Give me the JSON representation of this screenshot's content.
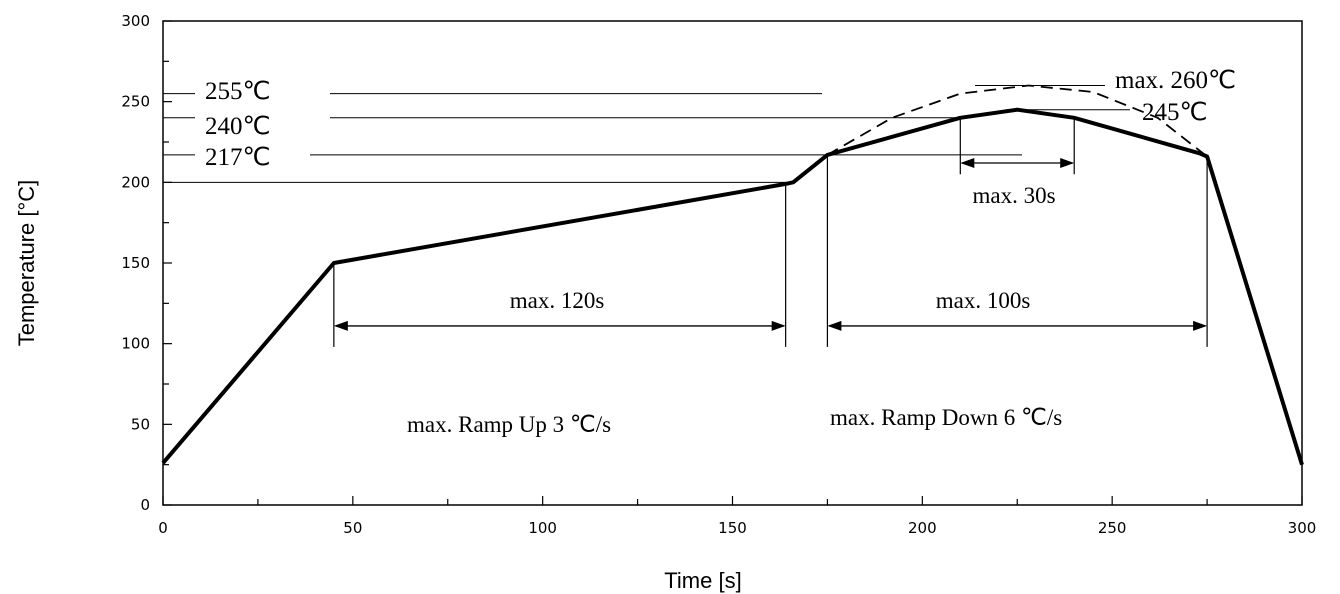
{
  "chart_data": {
    "type": "line",
    "title": "",
    "xlabel": "Time [s]",
    "ylabel": "Temperature [°C]",
    "xlim": [
      0,
      300
    ],
    "ylim": [
      0,
      300
    ],
    "x_ticks": [
      0,
      50,
      100,
      150,
      200,
      250,
      300
    ],
    "x_tick_labels": [
      "0",
      "50",
      "100",
      "150",
      "200",
      "250",
      "300"
    ],
    "y_ticks": [
      0,
      50,
      100,
      150,
      200,
      250,
      300
    ],
    "y_tick_labels": [
      "0",
      "50",
      "100",
      "150",
      "200",
      "250",
      "300"
    ],
    "grid": false,
    "series": [
      {
        "style": "solid",
        "x": [
          0,
          45,
          164,
          166,
          175,
          210,
          225,
          240,
          273,
          275,
          300
        ],
        "y": [
          26,
          150,
          199,
          200,
          217,
          240,
          245,
          240,
          218,
          216,
          25
        ]
      },
      {
        "style": "dashed",
        "x": [
          175,
          192,
          210,
          228,
          245,
          262,
          275
        ],
        "y": [
          217,
          240,
          255,
          260,
          256,
          240,
          216
        ]
      }
    ],
    "reference_lines": [
      {
        "y": 255,
        "label": "255℃",
        "side": "left"
      },
      {
        "y": 240,
        "label": "240℃",
        "side": "left"
      },
      {
        "y": 217,
        "label": "217℃",
        "side": "left"
      },
      {
        "y": 200,
        "label": "",
        "side": "left"
      },
      {
        "y": 260,
        "label": "max. 260℃",
        "side": "right"
      },
      {
        "y": 245,
        "label": "245℃",
        "side": "right"
      }
    ],
    "annotations": [
      {
        "text": "max. 120s",
        "x_start": 45,
        "x_end": 164,
        "y": 111
      },
      {
        "text": "max. 100s",
        "x_start": 175,
        "x_end": 275,
        "y": 111
      },
      {
        "text": "max. 30s",
        "x_start": 210,
        "x_end": 240,
        "y": 212
      },
      {
        "text": "max. Ramp Up 3 ℃/s"
      },
      {
        "text": "max. Ramp Down 6 ℃/s"
      }
    ]
  }
}
